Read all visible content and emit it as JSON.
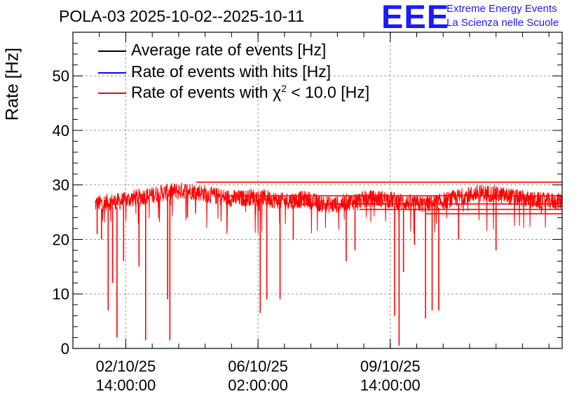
{
  "chart_data": {
    "type": "line",
    "title": "POLA-03 2025-10-02--2025-10-11",
    "ylabel": "Rate [Hz]",
    "xlabel": "",
    "ylim": [
      0,
      58
    ],
    "yticks": [
      0,
      10,
      20,
      30,
      40,
      50
    ],
    "xlim_hours": [
      0,
      222
    ],
    "xticks": [
      {
        "hours": 24,
        "date": "02/10/25",
        "time": "14:00:00"
      },
      {
        "hours": 84,
        "date": "06/10/25",
        "time": "02:00:00"
      },
      {
        "hours": 144,
        "date": "09/10/25",
        "time": "14:00:00"
      }
    ],
    "grid": true,
    "legend": {
      "placement": "top-left",
      "entries": [
        {
          "name": "Average rate of events [Hz]",
          "color": "#000000"
        },
        {
          "name": "Rate of events with hits [Hz]",
          "color": "#0000ff"
        },
        {
          "name": "Rate of events with χ² < 10.0 [Hz]",
          "color": "#ff0000",
          "prefix": "Rate of events with ",
          "chi": "χ",
          "sup": "2",
          "suffix": " < 10.0 [Hz]"
        }
      ]
    },
    "series": [
      {
        "name": "Rate of events with χ² < 10.0 [Hz]",
        "color": "#ff0000",
        "x_hours": [
          10,
          16,
          22,
          28,
          34,
          40,
          46,
          52,
          58,
          64,
          70,
          76,
          82,
          88,
          94,
          100,
          106,
          112,
          118,
          124,
          130,
          136,
          142,
          148,
          154,
          160,
          166,
          172,
          178,
          184,
          190,
          196,
          202,
          208,
          214,
          222
        ],
        "values": [
          26.5,
          26.8,
          27.0,
          27.6,
          28.0,
          28.5,
          28.8,
          29.0,
          28.6,
          28.0,
          27.6,
          27.5,
          27.8,
          27.6,
          27.0,
          27.2,
          27.4,
          26.6,
          26.3,
          26.8,
          27.2,
          27.5,
          27.4,
          27.0,
          26.6,
          26.4,
          26.8,
          27.4,
          28.0,
          28.5,
          28.4,
          28.0,
          27.6,
          27.2,
          27.0,
          27.0
        ],
        "dips": [
          {
            "x_hours": 11,
            "value": 21
          },
          {
            "x_hours": 13,
            "value": 20
          },
          {
            "x_hours": 16,
            "value": 7
          },
          {
            "x_hours": 18,
            "value": 12
          },
          {
            "x_hours": 20,
            "value": 2
          },
          {
            "x_hours": 23,
            "value": 16
          },
          {
            "x_hours": 30,
            "value": 15
          },
          {
            "x_hours": 33,
            "value": 1.5
          },
          {
            "x_hours": 43,
            "value": 9
          },
          {
            "x_hours": 44,
            "value": 1.5
          },
          {
            "x_hours": 52,
            "value": 24
          },
          {
            "x_hours": 85,
            "value": 6.5
          },
          {
            "x_hours": 88,
            "value": 9
          },
          {
            "x_hours": 94,
            "value": 9
          },
          {
            "x_hours": 100,
            "value": 20
          },
          {
            "x_hours": 124,
            "value": 16
          },
          {
            "x_hours": 128,
            "value": 18
          },
          {
            "x_hours": 146,
            "value": 6
          },
          {
            "x_hours": 148,
            "value": 0.5
          },
          {
            "x_hours": 150,
            "value": 14
          },
          {
            "x_hours": 155,
            "value": 19
          },
          {
            "x_hours": 160,
            "value": 5.5
          },
          {
            "x_hours": 163,
            "value": 7
          },
          {
            "x_hours": 166,
            "value": 7
          },
          {
            "x_hours": 175,
            "value": 20
          },
          {
            "x_hours": 192,
            "value": 18
          }
        ],
        "flat_segments": [
          {
            "x_start_hours": 56,
            "x_end_hours": 222,
            "value": 30.5
          },
          {
            "x_start_hours": 70,
            "x_end_hours": 222,
            "value": 28.0
          },
          {
            "x_start_hours": 100,
            "x_end_hours": 222,
            "value": 26.5
          },
          {
            "x_start_hours": 130,
            "x_end_hours": 222,
            "value": 25.5
          },
          {
            "x_start_hours": 160,
            "x_end_hours": 222,
            "value": 24.7
          }
        ]
      }
    ]
  },
  "logo": {
    "mark": "EEE",
    "line1": "Extreme Energy Events",
    "line2": "La Scienza nelle Scuole"
  }
}
